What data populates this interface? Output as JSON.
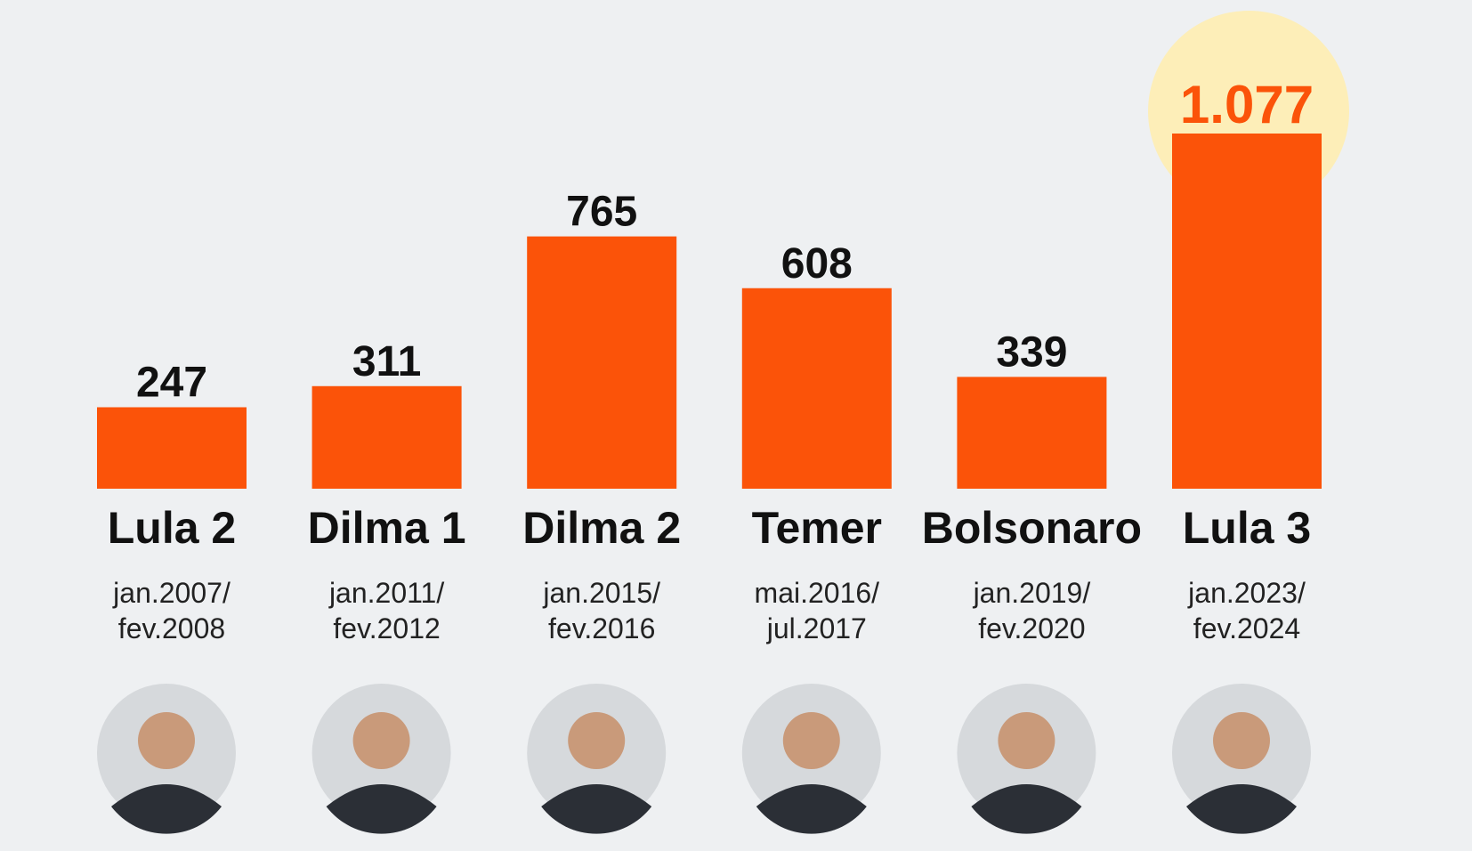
{
  "colors": {
    "background": "#eef0f2",
    "bar": "#fb5309",
    "highlight_circle": "#fdeeb8",
    "highlight_text": "#fb5309",
    "text": "#111111"
  },
  "chart_data": {
    "type": "bar",
    "title": "",
    "xlabel": "",
    "ylabel": "",
    "ylim": [
      0,
      1077
    ],
    "grid": false,
    "categories": [
      "Lula 2",
      "Dilma 1",
      "Dilma 2",
      "Temer",
      "Bolsonaro",
      "Lula 3"
    ],
    "values": [
      247,
      311,
      765,
      608,
      339,
      1077
    ],
    "value_labels": [
      "247",
      "311",
      "765",
      "608",
      "339",
      "1.077"
    ],
    "periods": [
      [
        "jan.2007/",
        "fev.2008"
      ],
      [
        "jan.2011/",
        "fev.2012"
      ],
      [
        "jan.2015/",
        "fev.2016"
      ],
      [
        "mai.2016/",
        "jul.2017"
      ],
      [
        "jan.2019/",
        "fev.2020"
      ],
      [
        "jan.2023/",
        "fev.2024"
      ]
    ],
    "highlighted_index": 5,
    "portrait_icons": [
      "portrait-lula-icon",
      "portrait-dilma-icon",
      "portrait-dilma-icon",
      "portrait-temer-icon",
      "portrait-bolsonaro-icon",
      "portrait-lula-icon"
    ]
  }
}
